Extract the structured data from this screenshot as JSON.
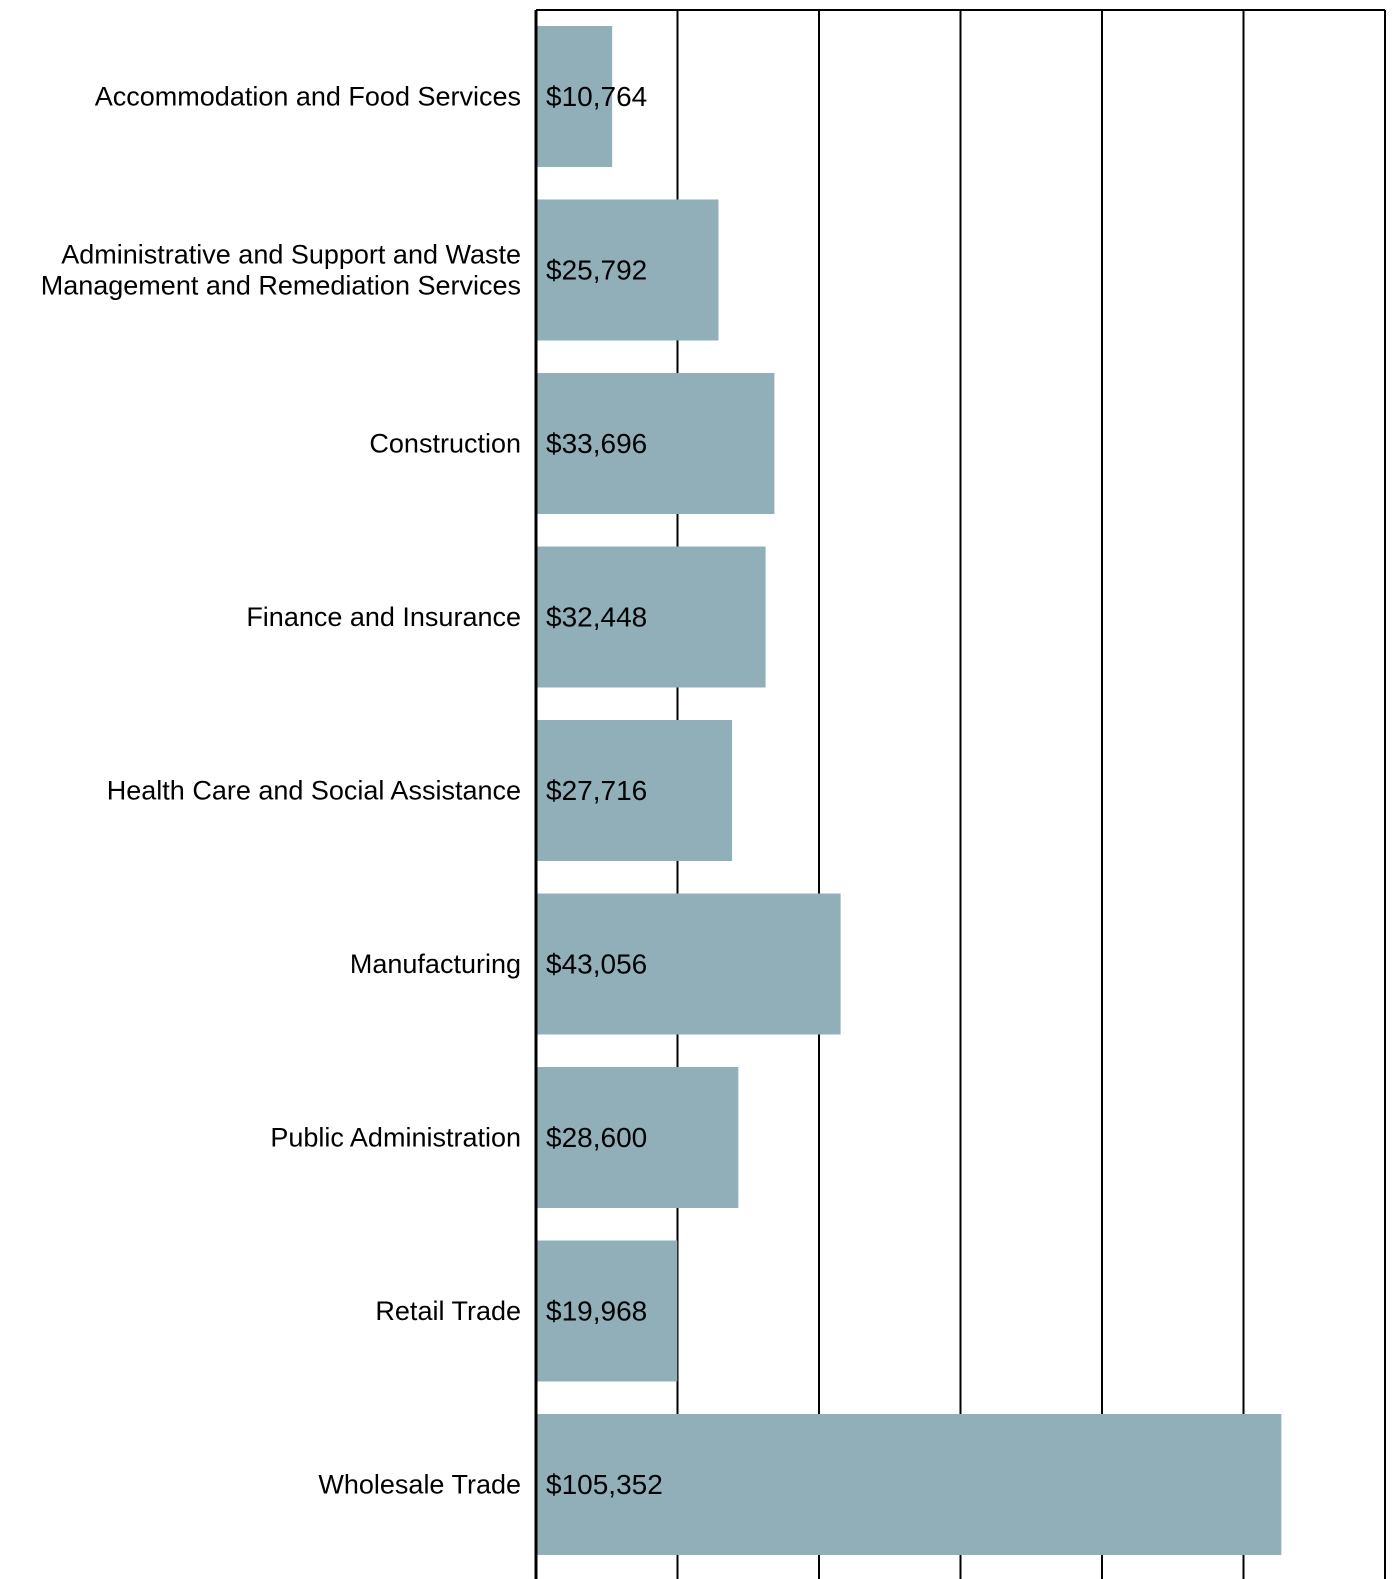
{
  "chart_data": {
    "type": "bar",
    "orientation": "horizontal",
    "title": "",
    "xlabel": "",
    "ylabel": "",
    "categories": [
      [
        "Accommodation and Food Services"
      ],
      [
        "Administrative and Support and Waste",
        "Management and Remediation Services"
      ],
      [
        "Construction"
      ],
      [
        "Finance and Insurance"
      ],
      [
        "Health Care and Social Assistance"
      ],
      [
        "Manufacturing"
      ],
      [
        "Public Administration"
      ],
      [
        "Retail Trade"
      ],
      [
        "Wholesale Trade"
      ]
    ],
    "values": [
      10764,
      25792,
      33696,
      32448,
      27716,
      43056,
      28600,
      19968,
      105352
    ],
    "data_labels": [
      "$10,764",
      "$25,792",
      "$33,696",
      "$32,448",
      "$27,716",
      "$43,056",
      "$28,600",
      "$19,968",
      "$105,352"
    ],
    "xlim": [
      0,
      120000
    ],
    "x_gridlines": [
      20000,
      40000,
      60000,
      80000,
      100000,
      120000
    ],
    "grid": true,
    "legend": "none",
    "bar_color": "#90afb9"
  }
}
